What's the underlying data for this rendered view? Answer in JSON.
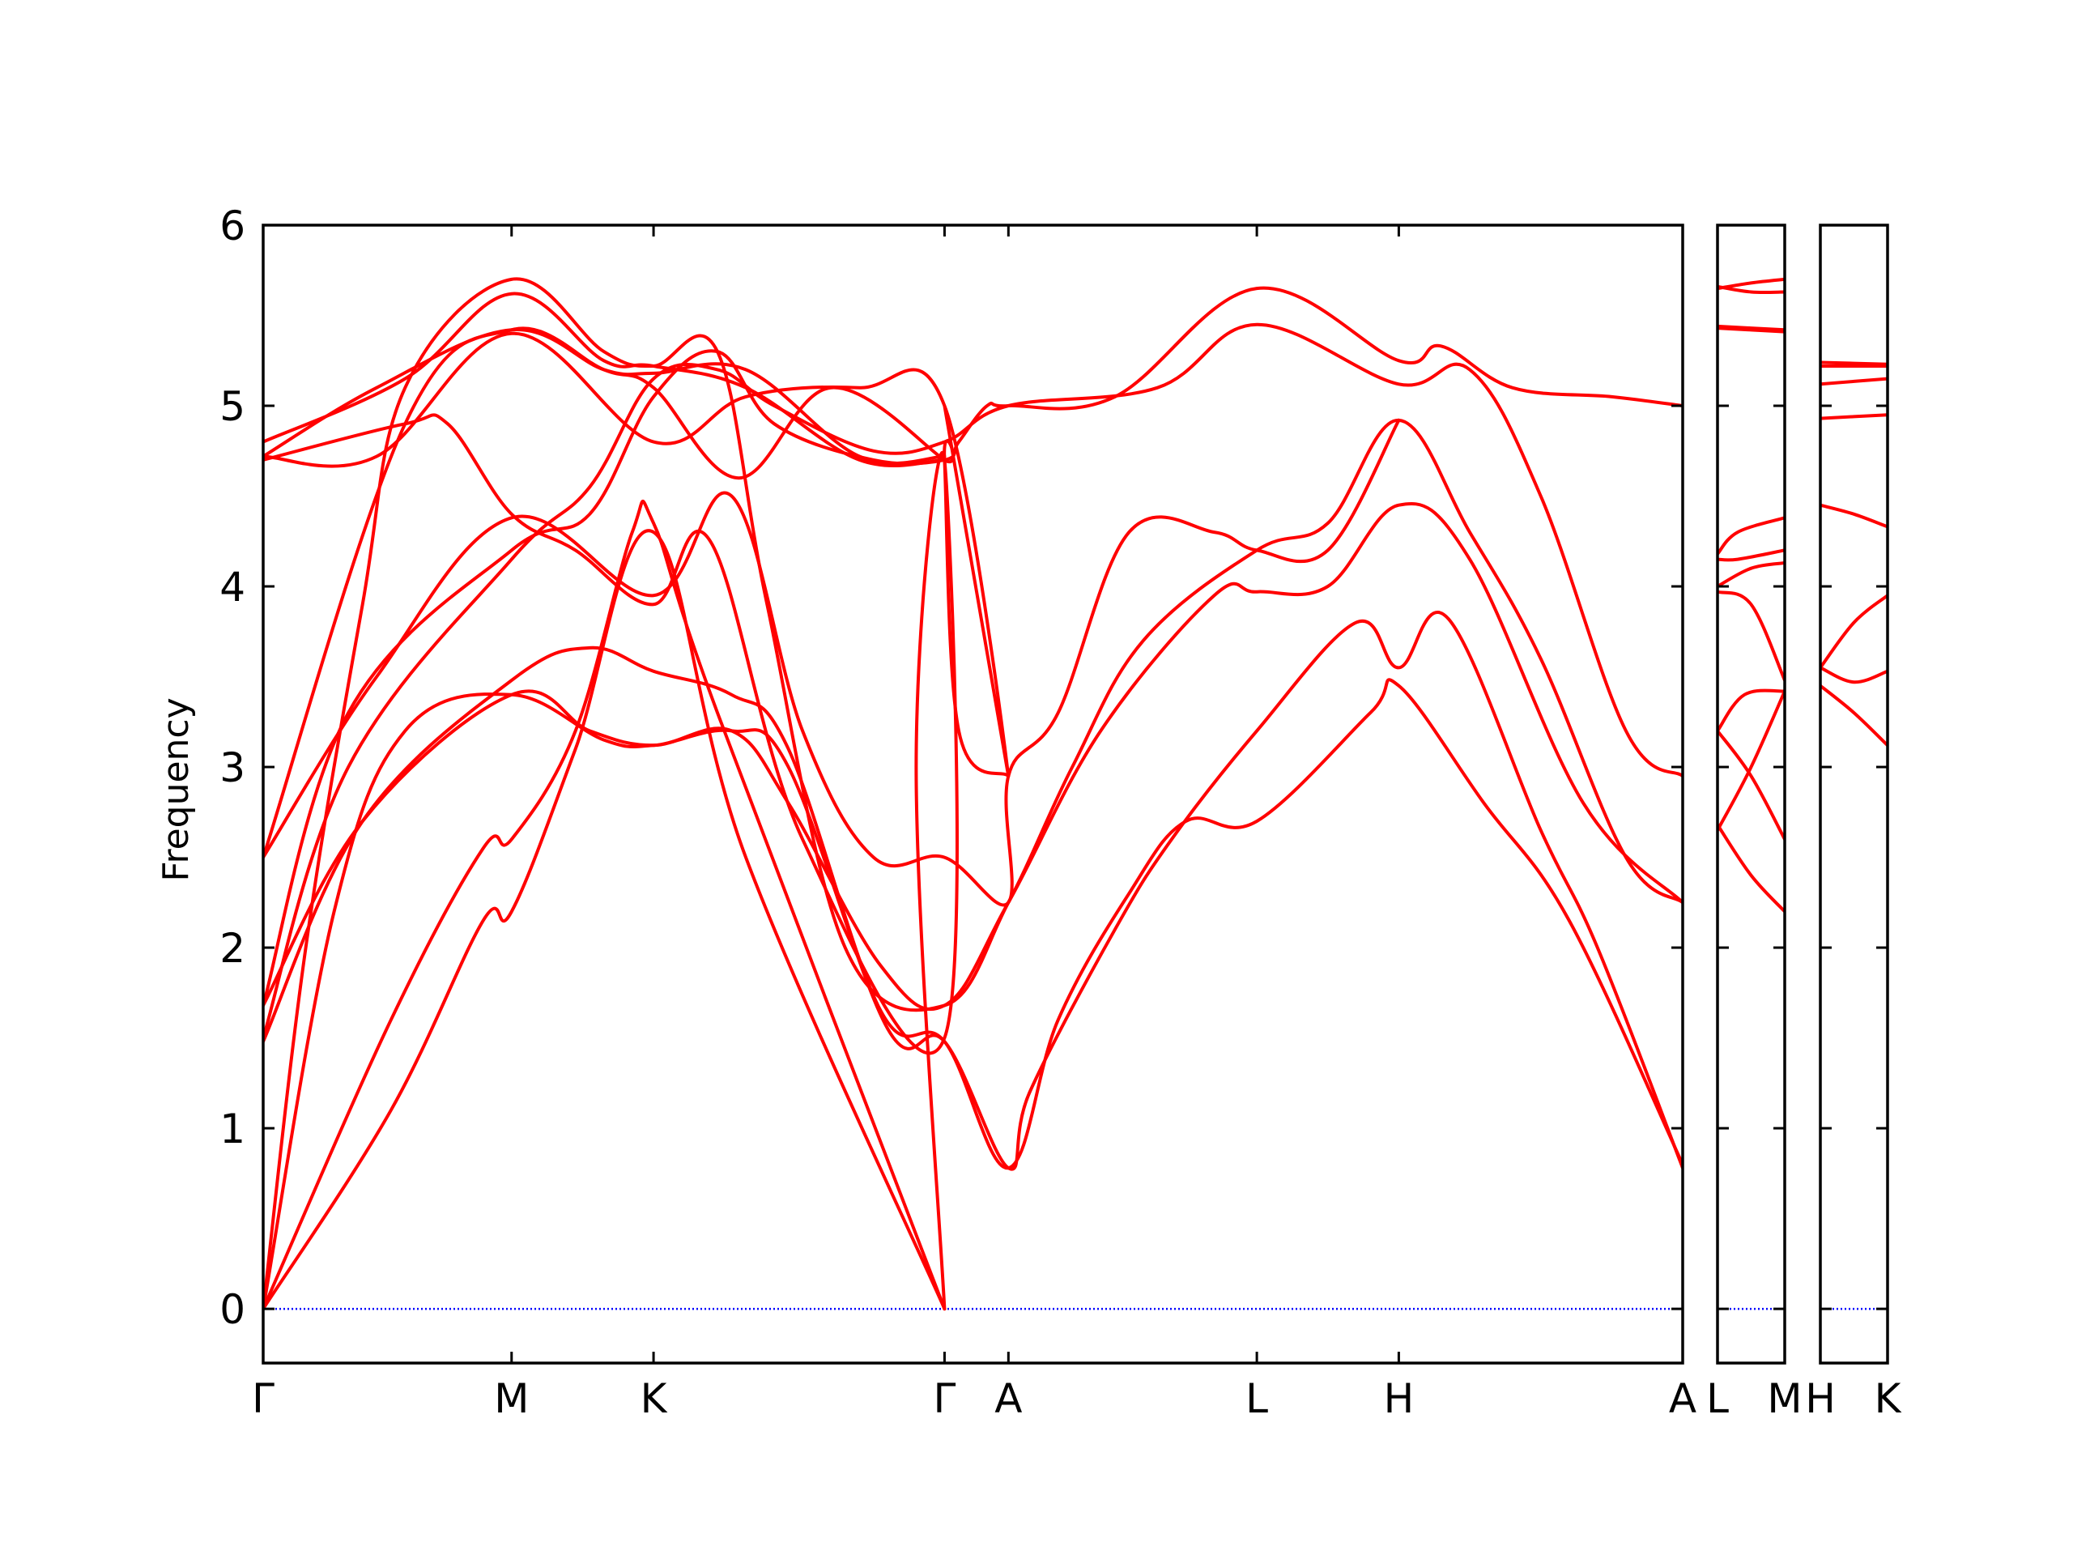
{
  "chart_data": {
    "type": "line",
    "title": "",
    "ylabel": "Frequency",
    "xlabel": "",
    "ylim": [
      -0.3,
      6
    ],
    "yticks": [
      0,
      1,
      2,
      3,
      4,
      5,
      6
    ],
    "ytick_labels": [
      "0",
      "1",
      "2",
      "3",
      "4",
      "5",
      "6"
    ],
    "colors": {
      "bands": "#ff0000",
      "zero_line": "#0000ff",
      "frame": "#000000"
    },
    "panels": [
      {
        "id": "main",
        "x_range": [
          0,
          10.0
        ],
        "ticks": [
          {
            "x": 0.0,
            "label": "Γ"
          },
          {
            "x": 1.75,
            "label": "M"
          },
          {
            "x": 2.75,
            "label": "K"
          },
          {
            "x": 4.8,
            "label": "Γ"
          },
          {
            "x": 5.25,
            "label": "A"
          },
          {
            "x": 7.0,
            "label": "L"
          },
          {
            "x": 8.0,
            "label": "H"
          },
          {
            "x": 10.0,
            "label": "A"
          }
        ],
        "bands": [
          [
            [
              0,
              0
            ],
            [
              0.9,
              1.1
            ],
            [
              1.55,
              2.15
            ],
            [
              1.75,
              2.2
            ],
            [
              2.2,
              3.1
            ],
            [
              2.75,
              4.3
            ],
            [
              3.4,
              2.5
            ],
            [
              4.8,
              0
            ]
          ],
          [
            [
              0,
              0
            ],
            [
              0.9,
              1.6
            ],
            [
              1.55,
              2.55
            ],
            [
              1.75,
              2.6
            ],
            [
              2.2,
              3.2
            ],
            [
              2.6,
              4.3
            ],
            [
              2.75,
              4.35
            ],
            [
              3.2,
              3.3
            ],
            [
              4.8,
              0
            ]
          ],
          [
            [
              0,
              0
            ],
            [
              0.5,
              2.2
            ],
            [
              1.0,
              3.2
            ],
            [
              1.75,
              3.4
            ],
            [
              2.4,
              3.15
            ],
            [
              2.75,
              3.12
            ],
            [
              3.3,
              3.2
            ],
            [
              3.7,
              3.0
            ],
            [
              4.4,
              1.55
            ],
            [
              4.8,
              1.48
            ],
            [
              5.25,
              0.78
            ],
            [
              5.4,
              1.2
            ],
            [
              6.0,
              2.1
            ],
            [
              6.4,
              2.6
            ],
            [
              7.0,
              3.2
            ],
            [
              7.7,
              3.8
            ],
            [
              8.0,
              3.55
            ],
            [
              8.35,
              3.82
            ],
            [
              9.0,
              2.65
            ],
            [
              9.4,
              2.0
            ],
            [
              10.0,
              0.78
            ]
          ],
          [
            [
              0,
              0
            ],
            [
              0.3,
              2.0
            ],
            [
              0.7,
              3.9
            ],
            [
              1.0,
              5.1
            ],
            [
              1.75,
              5.7
            ],
            [
              2.4,
              5.3
            ],
            [
              2.75,
              5.22
            ],
            [
              3.2,
              5.3
            ],
            [
              3.55,
              3.9
            ],
            [
              4.1,
              2.0
            ],
            [
              4.8,
              1.68
            ],
            [
              5.25,
              2.25
            ],
            [
              5.7,
              3.0
            ],
            [
              6.2,
              3.7
            ],
            [
              7.0,
              4.2
            ],
            [
              7.5,
              4.35
            ],
            [
              8.0,
              4.92
            ],
            [
              8.5,
              4.3
            ],
            [
              9.0,
              3.6
            ],
            [
              9.6,
              2.5
            ],
            [
              10.0,
              2.25
            ]
          ],
          [
            [
              0,
              1.48
            ],
            [
              0.7,
              2.7
            ],
            [
              1.75,
              3.48
            ],
            [
              2.3,
              3.66
            ],
            [
              2.75,
              3.53
            ],
            [
              3.3,
              3.4
            ],
            [
              3.7,
              3.1
            ],
            [
              4.35,
              1.65
            ],
            [
              4.8,
              1.48
            ],
            [
              5.25,
              0.78
            ],
            [
              5.6,
              1.6
            ],
            [
              6.1,
              2.3
            ],
            [
              6.5,
              2.7
            ],
            [
              7.0,
              2.7
            ],
            [
              7.8,
              3.3
            ],
            [
              8.0,
              3.45
            ],
            [
              8.6,
              2.8
            ],
            [
              9.2,
              2.15
            ],
            [
              10.0,
              0.8
            ]
          ],
          [
            [
              0,
              1.68
            ],
            [
              0.7,
              2.7
            ],
            [
              1.75,
              3.4
            ],
            [
              2.3,
              3.2
            ],
            [
              2.75,
              3.12
            ],
            [
              3.3,
              3.2
            ],
            [
              3.7,
              2.8
            ],
            [
              4.35,
              1.9
            ],
            [
              4.8,
              1.68
            ],
            [
              5.25,
              2.25
            ],
            [
              5.9,
              3.2
            ],
            [
              6.7,
              3.95
            ],
            [
              7.0,
              3.97
            ],
            [
              7.5,
              4.0
            ],
            [
              8.0,
              4.45
            ],
            [
              8.5,
              4.15
            ],
            [
              9.3,
              2.8
            ],
            [
              10.0,
              2.25
            ]
          ],
          [
            [
              0,
              1.5
            ],
            [
              0.6,
              3.0
            ],
            [
              1.75,
              4.15
            ],
            [
              2.3,
              4.55
            ],
            [
              2.75,
              5.15
            ],
            [
              3.2,
              5.2
            ],
            [
              3.6,
              5.0
            ],
            [
              4.3,
              4.75
            ],
            [
              4.8,
              4.8
            ],
            [
              5.25,
              5.0
            ],
            [
              6.3,
              5.1
            ],
            [
              7.0,
              5.45
            ],
            [
              8.0,
              5.12
            ],
            [
              8.5,
              5.2
            ],
            [
              9.0,
              4.5
            ],
            [
              9.6,
              3.2
            ],
            [
              10.0,
              2.95
            ]
          ],
          [
            [
              0,
              1.68
            ],
            [
              0.6,
              3.3
            ],
            [
              1.75,
              4.2
            ],
            [
              2.3,
              4.4
            ],
            [
              2.75,
              5.05
            ],
            [
              3.2,
              5.3
            ],
            [
              3.6,
              4.9
            ],
            [
              4.3,
              4.7
            ],
            [
              4.8,
              4.7
            ],
            [
              4.9,
              4.8
            ],
            [
              5.1,
              5.0
            ],
            [
              5.25,
              5.0
            ],
            [
              6.0,
              5.05
            ],
            [
              7.0,
              5.65
            ],
            [
              8.0,
              5.25
            ],
            [
              8.3,
              5.33
            ],
            [
              8.8,
              5.1
            ],
            [
              9.5,
              5.05
            ],
            [
              10.0,
              5.0
            ]
          ],
          [
            [
              0,
              2.5
            ],
            [
              0.8,
              3.5
            ],
            [
              1.75,
              4.38
            ],
            [
              2.75,
              3.95
            ],
            [
              3.3,
              4.5
            ],
            [
              3.8,
              3.2
            ],
            [
              4.3,
              2.5
            ],
            [
              4.8,
              2.5
            ],
            [
              5.25,
              2.25
            ],
            [
              5.25,
              2.95
            ],
            [
              5.6,
              3.3
            ],
            [
              6.1,
              4.3
            ],
            [
              6.7,
              4.3
            ],
            [
              7.0,
              4.2
            ],
            [
              7.5,
              4.2
            ],
            [
              8.0,
              4.92
            ]
          ],
          [
            [
              0,
              2.5
            ],
            [
              1.0,
              4.9
            ],
            [
              1.75,
              5.42
            ],
            [
              2.4,
              5.2
            ],
            [
              2.75,
              5.1
            ],
            [
              3.35,
              4.6
            ],
            [
              4.0,
              5.1
            ],
            [
              4.8,
              4.7
            ],
            [
              4.8,
              4.7
            ],
            [
              4.9,
              3.2
            ],
            [
              5.25,
              2.95
            ]
          ],
          [
            [
              0,
              4.7
            ],
            [
              1.0,
              4.9
            ],
            [
              1.3,
              4.9
            ],
            [
              1.75,
              4.4
            ],
            [
              2.2,
              4.2
            ],
            [
              2.75,
              3.9
            ],
            [
              3.15,
              4.25
            ],
            [
              3.8,
              2.6
            ],
            [
              4.8,
              1.5
            ],
            [
              4.8,
              4.7
            ],
            [
              4.6,
              3.0
            ],
            [
              4.8,
              0
            ]
          ],
          [
            [
              0,
              4.72
            ],
            [
              0.8,
              5.1
            ],
            [
              1.75,
              5.42
            ],
            [
              2.4,
              5.2
            ],
            [
              2.75,
              5.18
            ],
            [
              3.4,
              5.2
            ],
            [
              4.2,
              4.72
            ],
            [
              4.8,
              4.72
            ]
          ],
          [
            [
              0,
              4.8
            ],
            [
              1.0,
              5.15
            ],
            [
              1.75,
              5.62
            ],
            [
              2.4,
              5.25
            ],
            [
              2.75,
              5.22
            ],
            [
              3.4,
              5.1
            ],
            [
              4.2,
              4.7
            ],
            [
              4.8,
              4.7
            ]
          ],
          [
            [
              0,
              4.72
            ],
            [
              0.8,
              4.72
            ],
            [
              1.75,
              5.4
            ],
            [
              2.75,
              4.8
            ],
            [
              3.4,
              5.05
            ],
            [
              4.2,
              5.1
            ],
            [
              4.8,
              5.0
            ],
            [
              5.25,
              2.95
            ],
            [
              4.8,
              5.0
            ]
          ]
        ]
      },
      {
        "id": "L-M",
        "x_range": [
          0,
          1
        ],
        "ticks": [
          {
            "x": 0,
            "label": "L"
          },
          {
            "x": 1,
            "label": "M"
          }
        ],
        "bands": [
          [
            [
              0,
              5.65
            ],
            [
              0.5,
              5.68
            ],
            [
              1,
              5.7
            ]
          ],
          [
            [
              0,
              5.66
            ],
            [
              0.5,
              5.63
            ],
            [
              1,
              5.63
            ]
          ],
          [
            [
              0,
              5.44
            ],
            [
              1,
              5.42
            ]
          ],
          [
            [
              0,
              5.43
            ],
            [
              1,
              5.41
            ]
          ],
          [
            [
              0,
              4.18
            ],
            [
              0.3,
              4.3
            ],
            [
              1,
              4.38
            ]
          ],
          [
            [
              0,
              4.15
            ],
            [
              0.3,
              4.15
            ],
            [
              1,
              4.2
            ]
          ],
          [
            [
              0,
              3.97
            ],
            [
              0.5,
              3.9
            ],
            [
              1,
              3.48
            ]
          ],
          [
            [
              0,
              4.0
            ],
            [
              0.5,
              4.1
            ],
            [
              1,
              4.13
            ]
          ],
          [
            [
              0,
              3.2
            ],
            [
              0.4,
              3.4
            ],
            [
              1,
              3.42
            ]
          ],
          [
            [
              0,
              3.2
            ],
            [
              0.5,
              2.95
            ],
            [
              1,
              2.6
            ]
          ],
          [
            [
              0,
              2.65
            ],
            [
              0.5,
              3.0
            ],
            [
              1,
              3.42
            ]
          ],
          [
            [
              0,
              2.68
            ],
            [
              0.5,
              2.4
            ],
            [
              1,
              2.2
            ]
          ]
        ]
      },
      {
        "id": "H-K",
        "x_range": [
          0,
          1
        ],
        "ticks": [
          {
            "x": 0,
            "label": "H"
          },
          {
            "x": 1,
            "label": "K"
          }
        ],
        "bands": [
          [
            [
              0,
              5.24
            ],
            [
              1,
              5.23
            ]
          ],
          [
            [
              0,
              5.22
            ],
            [
              1,
              5.22
            ]
          ],
          [
            [
              0,
              5.12
            ],
            [
              1,
              5.15
            ]
          ],
          [
            [
              0,
              4.93
            ],
            [
              1,
              4.95
            ]
          ],
          [
            [
              0,
              4.45
            ],
            [
              0.5,
              4.4
            ],
            [
              1,
              4.33
            ]
          ],
          [
            [
              0,
              3.55
            ],
            [
              0.5,
              3.8
            ],
            [
              1,
              3.95
            ]
          ],
          [
            [
              0,
              3.55
            ],
            [
              0.5,
              3.47
            ],
            [
              1,
              3.53
            ]
          ],
          [
            [
              0,
              3.45
            ],
            [
              0.5,
              3.3
            ],
            [
              1,
              3.12
            ]
          ]
        ]
      }
    ]
  }
}
